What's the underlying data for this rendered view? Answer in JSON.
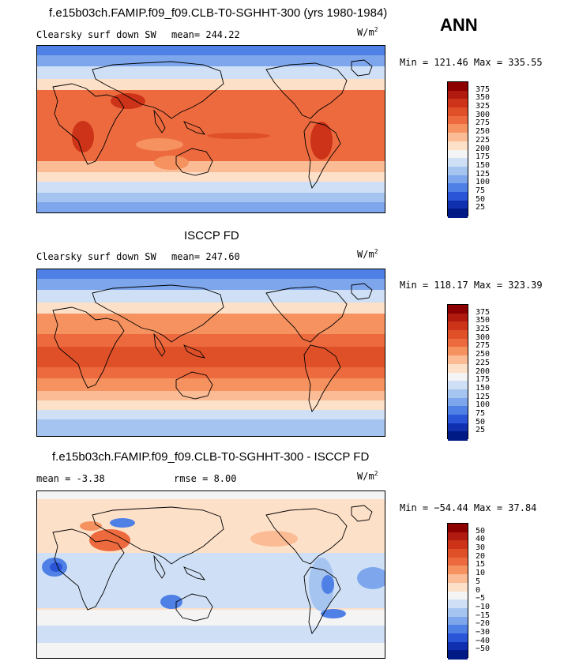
{
  "header": {
    "run_title": "f.e15b03ch.FAMIP.f09_f09.CLB-T0-SGHHT-300 (yrs 1980-1984)",
    "season": "ANN"
  },
  "units": {
    "base": "W/m",
    "exp": "2"
  },
  "panels": [
    {
      "title": "",
      "variable": "Clearsky surf down SW",
      "stat1": "mean= 244.22",
      "stat2": "",
      "minmax": "Min = 121.46 Max = 335.55",
      "kind": "absolute"
    },
    {
      "title": "ISCCP FD",
      "variable": "Clearsky surf down SW",
      "stat1": "mean= 247.60",
      "stat2": "",
      "minmax": "Min = 118.17 Max = 323.39",
      "kind": "absolute"
    },
    {
      "title": "f.e15b03ch.FAMIP.f09_f09.CLB-T0-SGHHT-300 - ISCCP FD",
      "variable": "",
      "stat1": "mean =   -3.38",
      "stat2": "rmse =    8.00",
      "minmax": "Min = −54.44 Max =  37.84",
      "kind": "difference"
    }
  ],
  "colorbars": {
    "absolute": {
      "labels": [
        "375",
        "350",
        "325",
        "300",
        "275",
        "250",
        "225",
        "200",
        "175",
        "150",
        "125",
        "100",
        "75",
        "50",
        "25"
      ],
      "colors": [
        "#8c0000",
        "#b01a0f",
        "#cc3318",
        "#e05028",
        "#ec6a3e",
        "#f5925f",
        "#fabb95",
        "#fde0c8",
        "#f4f4f4",
        "#cfe0f6",
        "#a6c4f0",
        "#7da6ec",
        "#4f80e6",
        "#2a55d6",
        "#1030b0",
        "#001a85"
      ]
    },
    "difference": {
      "labels": [
        "50",
        "40",
        "30",
        "20",
        "15",
        "10",
        "5",
        "0",
        "−5",
        "−10",
        "−15",
        "−20",
        "−30",
        "−40",
        "−50"
      ],
      "colors": [
        "#8c0000",
        "#b01a0f",
        "#cc3318",
        "#e05028",
        "#ec6a3e",
        "#f5925f",
        "#fabb95",
        "#fde0c8",
        "#f4f4f4",
        "#cfe0f6",
        "#a6c4f0",
        "#7da6ec",
        "#4f80e6",
        "#2a55d6",
        "#1030b0",
        "#001a85"
      ]
    }
  }
}
